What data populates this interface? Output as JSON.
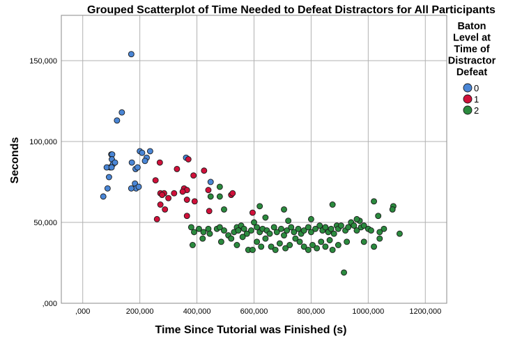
{
  "chart_data": {
    "type": "scatter",
    "title": "Grouped Scatterplot of Time Needed to Defeat Distractors for All Participants",
    "xlabel": "Time Since Tutorial was Finished (s)",
    "ylabel": "Seconds",
    "xlim": [
      -75000,
      1275000
    ],
    "ylim": [
      0,
      178000
    ],
    "x_ticks": [
      0,
      200000,
      400000,
      600000,
      800000,
      1000000,
      1200000
    ],
    "x_tick_labels": [
      ",000",
      "200,000",
      "400,000",
      "600,000",
      "800,000",
      "1000,000",
      "1200,000"
    ],
    "y_ticks": [
      0,
      50000,
      100000,
      150000
    ],
    "y_tick_labels": [
      ",000",
      "50,000",
      "100,000",
      "150,000"
    ],
    "grid": "vertical and horizontal at ticks",
    "legend": {
      "title_lines": [
        "Baton",
        "Level at",
        "Time of",
        "Distractor",
        "Defeat"
      ],
      "placement": "right"
    },
    "series": [
      {
        "name": "0",
        "color": "#4a86d6",
        "points": [
          [
            170000,
            154000
          ],
          [
            137000,
            118000
          ],
          [
            120000,
            113000
          ],
          [
            100000,
            92000
          ],
          [
            103000,
            92000
          ],
          [
            102000,
            89000
          ],
          [
            96000,
            84000
          ],
          [
            106000,
            86000
          ],
          [
            113000,
            87000
          ],
          [
            84000,
            84000
          ],
          [
            101000,
            84000
          ],
          [
            92000,
            78000
          ],
          [
            87000,
            71000
          ],
          [
            72000,
            66000
          ],
          [
            172000,
            87000
          ],
          [
            185000,
            83000
          ],
          [
            192000,
            84000
          ],
          [
            183000,
            74000
          ],
          [
            187000,
            71000
          ],
          [
            196000,
            72000
          ],
          [
            170000,
            71000
          ],
          [
            200000,
            94000
          ],
          [
            208000,
            93000
          ],
          [
            236000,
            94000
          ],
          [
            224000,
            90000
          ],
          [
            218000,
            88000
          ],
          [
            362000,
            90000
          ],
          [
            448000,
            75000
          ]
        ]
      },
      {
        "name": "1",
        "color": "#d0103a",
        "points": [
          [
            270000,
            87000
          ],
          [
            370000,
            89000
          ],
          [
            330000,
            83000
          ],
          [
            425000,
            82000
          ],
          [
            388000,
            79000
          ],
          [
            255000,
            76000
          ],
          [
            355000,
            71000
          ],
          [
            365000,
            70000
          ],
          [
            350000,
            69000
          ],
          [
            440000,
            70000
          ],
          [
            272000,
            68000
          ],
          [
            285000,
            68000
          ],
          [
            278000,
            67000
          ],
          [
            320000,
            68000
          ],
          [
            300000,
            65000
          ],
          [
            365000,
            64000
          ],
          [
            520000,
            67000
          ],
          [
            525000,
            68000
          ],
          [
            272000,
            61000
          ],
          [
            288000,
            58000
          ],
          [
            392000,
            63000
          ],
          [
            365000,
            54000
          ],
          [
            443000,
            57000
          ],
          [
            260000,
            52000
          ],
          [
            595000,
            56000
          ]
        ]
      },
      {
        "name": "2",
        "color": "#2b8a3e",
        "points": [
          [
            480000,
            72000
          ],
          [
            480000,
            66000
          ],
          [
            448000,
            66000
          ],
          [
            495000,
            58000
          ],
          [
            620000,
            60000
          ],
          [
            705000,
            58000
          ],
          [
            875000,
            61000
          ],
          [
            1020000,
            63000
          ],
          [
            1088000,
            60000
          ],
          [
            1085000,
            58000
          ],
          [
            1035000,
            54000
          ],
          [
            1055000,
            46000
          ],
          [
            600000,
            50000
          ],
          [
            890000,
            48000
          ],
          [
            380000,
            47000
          ],
          [
            407000,
            46000
          ],
          [
            390000,
            44000
          ],
          [
            423000,
            44000
          ],
          [
            440000,
            46000
          ],
          [
            470000,
            46000
          ],
          [
            480000,
            47000
          ],
          [
            495000,
            45000
          ],
          [
            510000,
            42000
          ],
          [
            530000,
            44000
          ],
          [
            540000,
            47000
          ],
          [
            545000,
            45000
          ],
          [
            555000,
            48000
          ],
          [
            565000,
            46000
          ],
          [
            575000,
            43000
          ],
          [
            590000,
            45000
          ],
          [
            610000,
            47000
          ],
          [
            620000,
            44000
          ],
          [
            630000,
            46000
          ],
          [
            645000,
            45000
          ],
          [
            655000,
            43000
          ],
          [
            670000,
            47000
          ],
          [
            680000,
            44000
          ],
          [
            695000,
            46000
          ],
          [
            705000,
            42000
          ],
          [
            715000,
            45000
          ],
          [
            730000,
            47000
          ],
          [
            740000,
            44000
          ],
          [
            755000,
            46000
          ],
          [
            765000,
            43000
          ],
          [
            775000,
            45000
          ],
          [
            790000,
            47000
          ],
          [
            800000,
            44000
          ],
          [
            815000,
            46000
          ],
          [
            830000,
            48000
          ],
          [
            840000,
            45000
          ],
          [
            850000,
            47000
          ],
          [
            860000,
            44000
          ],
          [
            870000,
            46000
          ],
          [
            880000,
            43000
          ],
          [
            895000,
            46000
          ],
          [
            905000,
            48000
          ],
          [
            920000,
            45000
          ],
          [
            930000,
            47000
          ],
          [
            940000,
            50000
          ],
          [
            950000,
            48000
          ],
          [
            960000,
            45000
          ],
          [
            975000,
            47000
          ],
          [
            985000,
            48000
          ],
          [
            1000000,
            46000
          ],
          [
            1010000,
            45000
          ],
          [
            1040000,
            44000
          ],
          [
            1110000,
            43000
          ],
          [
            970000,
            51000
          ],
          [
            960000,
            52000
          ],
          [
            640000,
            53000
          ],
          [
            720000,
            51000
          ],
          [
            800000,
            52000
          ],
          [
            385000,
            36000
          ],
          [
            420000,
            40000
          ],
          [
            445000,
            43000
          ],
          [
            485000,
            38000
          ],
          [
            520000,
            40000
          ],
          [
            540000,
            36000
          ],
          [
            560000,
            41000
          ],
          [
            580000,
            33000
          ],
          [
            595000,
            33000
          ],
          [
            610000,
            38000
          ],
          [
            625000,
            35000
          ],
          [
            640000,
            40000
          ],
          [
            660000,
            35000
          ],
          [
            675000,
            33000
          ],
          [
            690000,
            37000
          ],
          [
            710000,
            34000
          ],
          [
            725000,
            36000
          ],
          [
            745000,
            40000
          ],
          [
            760000,
            38000
          ],
          [
            775000,
            35000
          ],
          [
            790000,
            33000
          ],
          [
            805000,
            36000
          ],
          [
            820000,
            34000
          ],
          [
            835000,
            38000
          ],
          [
            850000,
            35000
          ],
          [
            865000,
            39000
          ],
          [
            875000,
            33000
          ],
          [
            895000,
            36000
          ],
          [
            925000,
            38000
          ],
          [
            985000,
            38000
          ],
          [
            1020000,
            35000
          ],
          [
            1040000,
            40000
          ],
          [
            915000,
            19000
          ]
        ]
      }
    ]
  }
}
